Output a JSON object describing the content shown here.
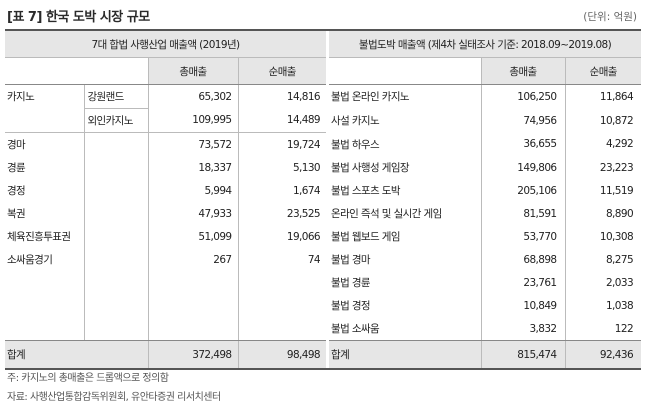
{
  "title": "[표 7] 한국 도박 시장 규모",
  "unit": "(단위: 억원)",
  "left_header": "7대 합법 사행산업 매출액 (2019년)",
  "right_header": "불법도박 매출액 (제4차 실태조사 기준: 2018.09~2019.08)",
  "col_total": "총매출",
  "col_net": "순매출",
  "left_rows": [
    {
      "name": "카지노",
      "sub": "강원랜드",
      "total": "65,302",
      "net": "14,816"
    },
    {
      "name": "",
      "sub": "외인카지노",
      "total": "109,995",
      "net": "14,489"
    },
    {
      "name": "경마",
      "sub": "",
      "total": "73,572",
      "net": "19,724"
    },
    {
      "name": "경륜",
      "sub": "",
      "total": "18,337",
      "net": "5,130"
    },
    {
      "name": "경정",
      "sub": "",
      "total": "5,994",
      "net": "1,674"
    },
    {
      "name": "복권",
      "sub": "",
      "total": "47,933",
      "net": "23,525"
    },
    {
      "name": "체육진흥투표권",
      "sub": "",
      "total": "51,099",
      "net": "19,066"
    },
    {
      "name": "소싸움경기",
      "sub": "",
      "total": "267",
      "net": "74"
    },
    {
      "name": "",
      "sub": "",
      "total": "",
      "net": ""
    },
    {
      "name": "",
      "sub": "",
      "total": "",
      "net": ""
    },
    {
      "name": "",
      "sub": "",
      "total": "",
      "net": ""
    }
  ],
  "right_rows": [
    {
      "name": "불법 온라인 카지노",
      "total": "106,250",
      "net": "11,864"
    },
    {
      "name": "사설 카지노",
      "total": "74,956",
      "net": "10,872"
    },
    {
      "name": "불법 하우스",
      "total": "36,655",
      "net": "4,292"
    },
    {
      "name": "불법 사행성 게임장",
      "total": "149,806",
      "net": "23,223"
    },
    {
      "name": "불법 스포츠 도박",
      "total": "205,106",
      "net": "11,519"
    },
    {
      "name": "온라인 즉석 및 실시간 게임",
      "total": "81,591",
      "net": "8,890"
    },
    {
      "name": "불법 웹보드 게임",
      "total": "53,770",
      "net": "10,308"
    },
    {
      "name": "불법 경마",
      "total": "68,898",
      "net": "8,275"
    },
    {
      "name": "불법 경륜",
      "total": "23,761",
      "net": "2,033"
    },
    {
      "name": "불법 경정",
      "total": "10,849",
      "net": "1,038"
    },
    {
      "name": "불법 소싸움",
      "total": "3,832",
      "net": "122"
    }
  ],
  "left_total": {
    "name": "합계",
    "total": "372,498",
    "net": "98,498"
  },
  "right_total": {
    "name": "합계",
    "total": "815,474",
    "net": "92,436"
  },
  "note": "주: 카지노의 총매출은 드롭액으로 정의함",
  "source": "자료: 사행산업통합감독위원회, 유안타증권 리서치센터"
}
